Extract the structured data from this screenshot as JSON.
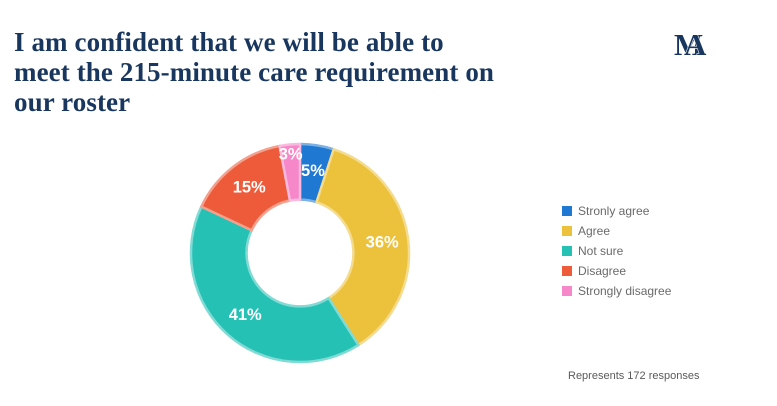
{
  "header": {
    "title_lines": [
      "I am confident that we will be able to",
      "meet the 215-minute care requirement on",
      "our roster"
    ],
    "logo_letters": [
      "M",
      "A"
    ]
  },
  "chart_data": {
    "type": "pie",
    "variant": "donut",
    "title": "I am confident that we will be able to meet the 215-minute care requirement on our roster",
    "categories": [
      "Stronly agree",
      "Agree",
      "Not sure",
      "Disagree",
      "Strongly disagree"
    ],
    "values": [
      5,
      36,
      41,
      15,
      3
    ],
    "slice_labels": [
      "5%",
      "36%",
      "41%",
      "15%",
      "3%"
    ],
    "colors": [
      "#1f78d1",
      "#ecc13b",
      "#26c1b5",
      "#ee5b3a",
      "#f687c8"
    ],
    "start_angle_deg": 0,
    "direction": "clockwise",
    "hole_ratio": 0.49,
    "legend_position": "right",
    "label_color": "#ffffff"
  },
  "footer": {
    "note": "Represents 172 responses"
  },
  "theme": {
    "background": "#ffffff",
    "title_color": "#18365e",
    "logo_color": "#18365e",
    "legend_text_color": "#6a6a6a",
    "note_color": "#5a5a5a"
  }
}
